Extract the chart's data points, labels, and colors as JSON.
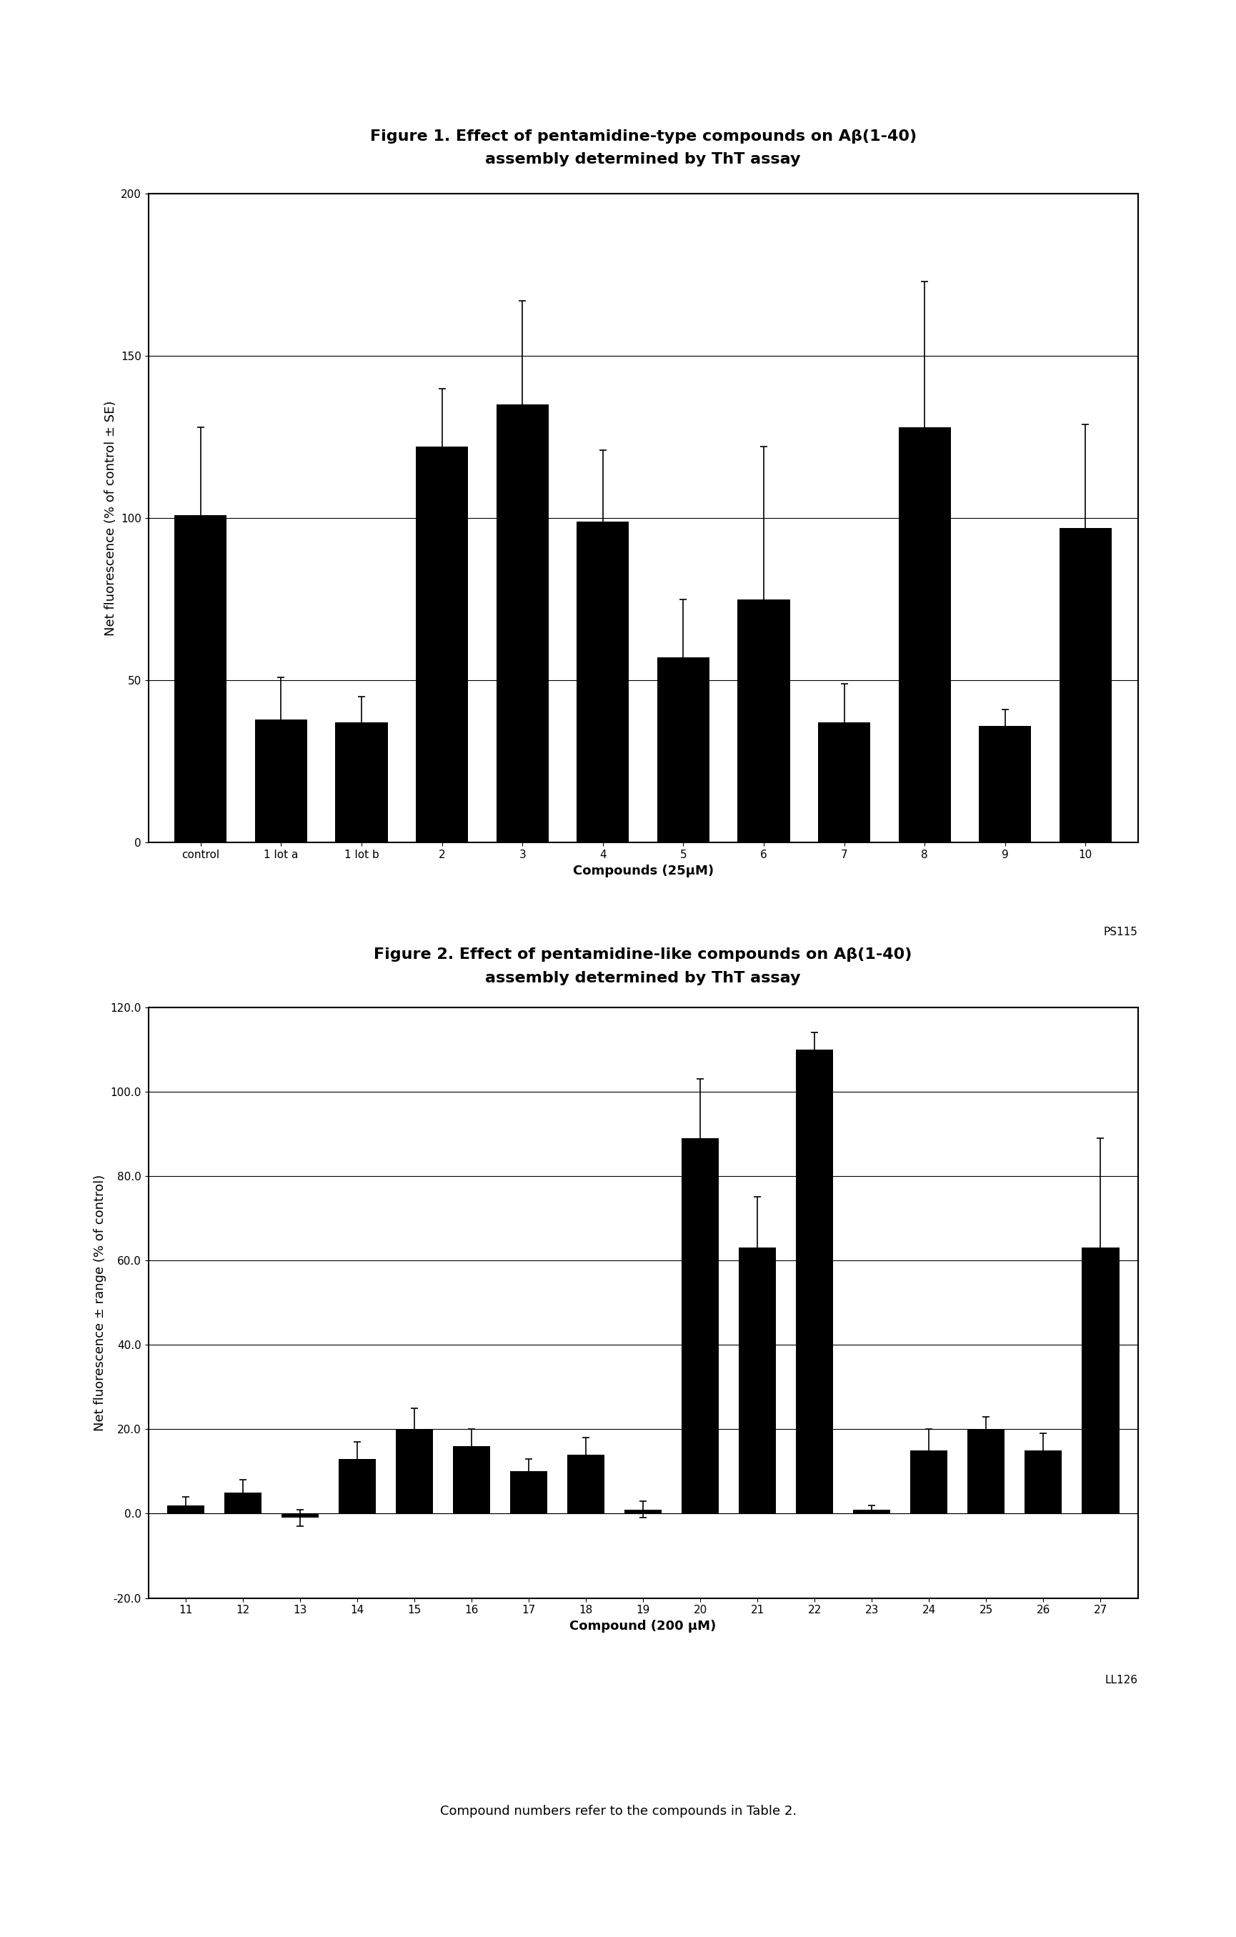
{
  "fig1": {
    "title_line1": "Figure 1. Effect of pentamidine-type compounds on Aβ(1-40)",
    "title_line2": "assembly determined by ThT assay",
    "xlabel": "Compounds (25μM)",
    "ylabel": "Net fluorescence (% of control ± SE)",
    "categories": [
      "control",
      "1 lot a",
      "1 lot b",
      "2",
      "3",
      "4",
      "5",
      "6",
      "7",
      "8",
      "9",
      "10"
    ],
    "values": [
      101,
      38,
      37,
      122,
      135,
      99,
      57,
      75,
      37,
      128,
      36,
      97
    ],
    "errors": [
      27,
      13,
      8,
      18,
      32,
      22,
      18,
      47,
      12,
      45,
      5,
      32
    ],
    "ylim": [
      0,
      200
    ],
    "yticks": [
      0,
      50,
      100,
      150,
      200
    ],
    "watermark": "PS115",
    "bar_color": "#000000",
    "bar_width": 0.65
  },
  "fig2": {
    "title_line1": "Figure 2. Effect of pentamidine-like compounds on Aβ(1-40)",
    "title_line2": "assembly determined by ThT assay",
    "xlabel": "Compound (200 μM)",
    "ylabel": "Net fluorescence ± range (% of control)",
    "categories": [
      "11",
      "12",
      "13",
      "14",
      "15",
      "16",
      "17",
      "18",
      "19",
      "20",
      "21",
      "22",
      "23",
      "24",
      "25",
      "26",
      "27"
    ],
    "values": [
      2,
      5,
      -1,
      13,
      20,
      16,
      10,
      14,
      1,
      89,
      63,
      110,
      1,
      15,
      20,
      15,
      63
    ],
    "errors": [
      2,
      3,
      2,
      4,
      5,
      4,
      3,
      4,
      2,
      14,
      12,
      4,
      1,
      5,
      3,
      4,
      26
    ],
    "ylim": [
      -20,
      120
    ],
    "yticks": [
      -20.0,
      0.0,
      20.0,
      40.0,
      60.0,
      80.0,
      100.0,
      120.0
    ],
    "watermark": "LL126",
    "bar_color": "#000000",
    "bar_width": 0.65
  },
  "caption": "Compound numbers refer to the compounds in Table 2.",
  "bg_color": "#ffffff",
  "title_fontsize": 16,
  "axis_label_fontsize": 13,
  "tick_fontsize": 11,
  "caption_fontsize": 13,
  "watermark_fontsize": 11
}
